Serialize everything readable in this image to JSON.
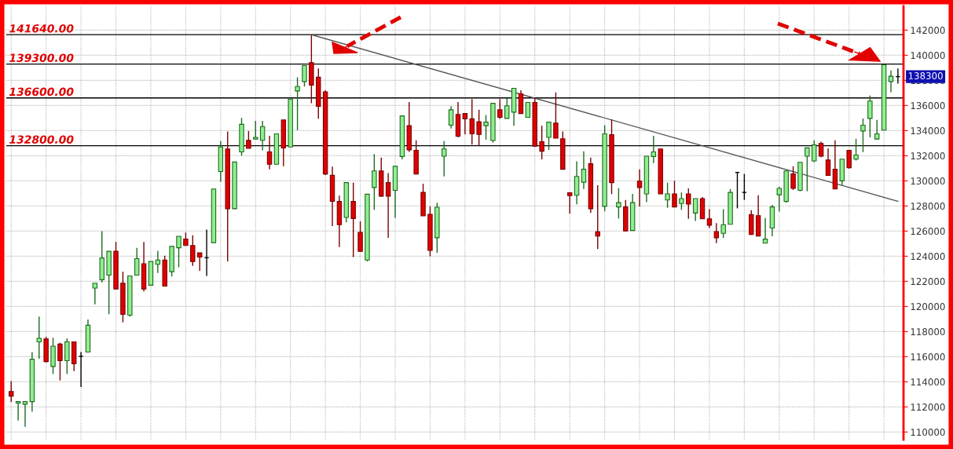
{
  "chart_data": {
    "type": "candlestick",
    "categories": [
      null,
      null,
      null,
      null,
      null,
      null,
      null,
      null,
      null,
      null,
      null,
      null,
      null,
      null,
      null,
      null,
      null,
      null,
      null,
      null,
      null,
      null,
      null,
      null,
      null,
      null,
      null,
      null,
      null,
      null,
      null,
      null,
      null,
      null,
      null,
      null,
      null,
      null,
      null,
      null,
      null,
      null,
      null,
      null,
      null,
      null,
      null,
      null,
      null,
      null,
      null,
      null,
      null,
      null,
      null,
      null,
      null,
      null,
      null,
      null,
      null,
      null,
      null,
      null,
      null,
      null,
      null,
      null,
      null,
      null,
      null,
      null,
      null,
      null,
      null,
      null,
      null,
      null,
      null,
      null,
      null,
      null,
      null,
      null,
      null,
      null,
      null,
      null,
      null,
      null,
      null,
      null,
      null,
      null,
      null,
      null,
      null,
      null,
      null,
      null,
      null,
      null,
      null,
      null,
      null,
      null,
      null,
      null,
      null,
      null,
      null,
      null,
      null,
      null,
      null,
      null,
      null,
      null,
      null,
      null,
      null,
      null,
      null,
      null,
      null,
      null,
      null,
      null
    ],
    "ohlc": [
      [
        113230,
        114060,
        112380,
        112860
      ],
      [
        112310,
        112420,
        110920,
        112420
      ],
      [
        112220,
        112420,
        110420,
        112420
      ],
      [
        112420,
        116370,
        111620,
        115800
      ],
      [
        117180,
        119190,
        115840,
        117460
      ],
      [
        117410,
        117580,
        115540,
        115610
      ],
      [
        115220,
        117510,
        114620,
        116840
      ],
      [
        117000,
        117110,
        114110,
        115680
      ],
      [
        115680,
        117460,
        114620,
        117180
      ],
      [
        117180,
        117180,
        114850,
        115430
      ],
      [
        116030,
        116370,
        113580,
        116030
      ],
      [
        116370,
        118960,
        116370,
        118500
      ],
      [
        121460,
        121850,
        120160,
        121850
      ],
      [
        122130,
        126000,
        121920,
        123860
      ],
      [
        122490,
        124390,
        119380,
        124390
      ],
      [
        124390,
        125150,
        121390,
        121390
      ],
      [
        121850,
        122770,
        118730,
        119380
      ],
      [
        119310,
        122430,
        119190,
        122430
      ],
      [
        122490,
        124670,
        122490,
        123810
      ],
      [
        123400,
        125130,
        121200,
        121390
      ],
      [
        121690,
        123580,
        121690,
        123580
      ],
      [
        123350,
        124430,
        122660,
        123700
      ],
      [
        123700,
        124040,
        121620,
        121620
      ],
      [
        122770,
        124780,
        122380,
        124780
      ],
      [
        124670,
        125590,
        123120,
        125590
      ],
      [
        125360,
        125890,
        124850,
        124850
      ],
      [
        124850,
        125660,
        123230,
        123580
      ],
      [
        124270,
        124270,
        122840,
        123930
      ],
      [
        123880,
        126120,
        122430,
        123880
      ],
      [
        125080,
        129350,
        125080,
        129350
      ],
      [
        130740,
        133160,
        129930,
        132700
      ],
      [
        132540,
        133930,
        123580,
        127780
      ],
      [
        127780,
        131500,
        127740,
        131500
      ],
      [
        132310,
        135010,
        132010,
        134500
      ],
      [
        133230,
        133970,
        132590,
        132590
      ],
      [
        133330,
        134780,
        133330,
        133460
      ],
      [
        133230,
        134780,
        132430,
        134320
      ],
      [
        132310,
        133580,
        130920,
        131320
      ],
      [
        131320,
        133740,
        131320,
        133740
      ],
      [
        134850,
        134850,
        131160,
        132630
      ],
      [
        132700,
        136510,
        132700,
        136510
      ],
      [
        137160,
        138250,
        134040,
        137510
      ],
      [
        137910,
        139180,
        137510,
        139180
      ],
      [
        139410,
        141610,
        136180,
        137630
      ],
      [
        138250,
        138940,
        134940,
        135940
      ],
      [
        137090,
        137210,
        130460,
        130550
      ],
      [
        130440,
        131130,
        126400,
        128380
      ],
      [
        128360,
        128820,
        124730,
        126510
      ],
      [
        127090,
        129860,
        126700,
        129860
      ],
      [
        128360,
        129860,
        123930,
        127000
      ],
      [
        125890,
        126770,
        124390,
        124390
      ],
      [
        123700,
        128940,
        123580,
        128940
      ],
      [
        129470,
        132130,
        127690,
        130790
      ],
      [
        130790,
        131850,
        128730,
        128780
      ],
      [
        129860,
        130620,
        125470,
        128780
      ],
      [
        129240,
        131160,
        127040,
        131160
      ],
      [
        131940,
        135170,
        131710,
        135170
      ],
      [
        134390,
        136280,
        132310,
        132470
      ],
      [
        132430,
        133230,
        130550,
        130550
      ],
      [
        129080,
        129770,
        127210,
        127210
      ],
      [
        127340,
        127970,
        124000,
        124460
      ],
      [
        125470,
        128250,
        124270,
        127900
      ],
      [
        131960,
        133160,
        130350,
        132540
      ],
      [
        134430,
        135940,
        134160,
        135660
      ],
      [
        135290,
        136280,
        133460,
        133560
      ],
      [
        135360,
        135400,
        133700,
        134940
      ],
      [
        134940,
        136510,
        132890,
        133740
      ],
      [
        134710,
        135660,
        132820,
        133700
      ],
      [
        134390,
        135240,
        133280,
        134670
      ],
      [
        133210,
        136170,
        133050,
        136170
      ],
      [
        135660,
        136510,
        134940,
        135060
      ],
      [
        134970,
        136580,
        134970,
        135980
      ],
      [
        135470,
        137370,
        134390,
        137370
      ],
      [
        136930,
        137210,
        135360,
        135360
      ],
      [
        135060,
        136240,
        135060,
        136240
      ],
      [
        136240,
        136630,
        132700,
        132770
      ],
      [
        133120,
        134390,
        131710,
        132360
      ],
      [
        133460,
        134670,
        132470,
        134670
      ],
      [
        134600,
        137040,
        133400,
        133400
      ],
      [
        133350,
        133930,
        130920,
        130920
      ],
      [
        129050,
        129050,
        127390,
        128820
      ],
      [
        128850,
        131550,
        128130,
        130350
      ],
      [
        129890,
        132360,
        129350,
        130920
      ],
      [
        131360,
        131850,
        127440,
        127780
      ],
      [
        125940,
        129650,
        124570,
        125610
      ],
      [
        127970,
        134430,
        127580,
        133740
      ],
      [
        133670,
        134900,
        128940,
        129860
      ],
      [
        127920,
        129420,
        127000,
        128270
      ],
      [
        127920,
        128480,
        125960,
        126010
      ],
      [
        126050,
        128960,
        126050,
        128270
      ],
      [
        129980,
        130920,
        127970,
        129470
      ],
      [
        128960,
        131960,
        128310,
        131960
      ],
      [
        131940,
        133580,
        131410,
        132310
      ],
      [
        132540,
        132540,
        128960,
        128960
      ],
      [
        128480,
        129860,
        127850,
        128960
      ],
      [
        128960,
        130000,
        127920,
        127920
      ],
      [
        128200,
        129080,
        127690,
        128590
      ],
      [
        128960,
        129400,
        126980,
        128150
      ],
      [
        127440,
        128590,
        126810,
        128590
      ],
      [
        128590,
        128710,
        126980,
        126980
      ],
      [
        126980,
        127740,
        126240,
        126470
      ],
      [
        125960,
        126630,
        125040,
        125470
      ],
      [
        125820,
        127740,
        125470,
        126510
      ],
      [
        126540,
        129350,
        126540,
        129080
      ],
      [
        130670,
        130670,
        127810,
        130670
      ],
      [
        129080,
        130550,
        128480,
        129080
      ],
      [
        127320,
        127670,
        125700,
        125730
      ],
      [
        127230,
        128850,
        125610,
        125610
      ],
      [
        125040,
        127040,
        125040,
        125360
      ],
      [
        126240,
        128080,
        125590,
        127920
      ],
      [
        128890,
        129520,
        127550,
        129400
      ],
      [
        128360,
        130790,
        128270,
        130790
      ],
      [
        130550,
        131160,
        129280,
        129400
      ],
      [
        129240,
        131480,
        129170,
        131480
      ],
      [
        131960,
        132630,
        129170,
        132630
      ],
      [
        131590,
        133230,
        131500,
        132860
      ],
      [
        132980,
        133120,
        131890,
        131960
      ],
      [
        131660,
        132590,
        130440,
        130440
      ],
      [
        130920,
        133230,
        129350,
        129350
      ],
      [
        130000,
        131730,
        129630,
        131730
      ],
      [
        132430,
        132470,
        130970,
        131040
      ],
      [
        131730,
        133350,
        131620,
        132060
      ],
      [
        133970,
        134970,
        132290,
        134430
      ],
      [
        134970,
        136790,
        133460,
        136350
      ],
      [
        133330,
        134850,
        133280,
        133740
      ],
      [
        134040,
        139240,
        134040,
        139240
      ],
      [
        137910,
        138790,
        137060,
        138330
      ],
      [
        138300,
        138940,
        137740,
        138300
      ]
    ],
    "colors": [
      "#e00000",
      "#90ee90",
      "#90ee90",
      "#90ee90",
      "#90ee90",
      "#e00000",
      "#90ee90",
      "#e00000",
      "#90ee90",
      "#e00000",
      "#000000",
      "#90ee90",
      "#90ee90",
      "#90ee90",
      "#90ee90",
      "#e00000",
      "#e00000",
      "#90ee90",
      "#90ee90",
      "#e00000",
      "#90ee90",
      "#90ee90",
      "#e00000",
      "#90ee90",
      "#90ee90",
      "#e00000",
      "#e00000",
      "#e00000",
      "#000000",
      "#90ee90",
      "#90ee90",
      "#e00000",
      "#90ee90",
      "#90ee90",
      "#e00000",
      "#90ee90",
      "#90ee90",
      "#e00000",
      "#90ee90",
      "#e00000",
      "#90ee90",
      "#90ee90",
      "#90ee90",
      "#e00000",
      "#e00000",
      "#e00000",
      "#e00000",
      "#e00000",
      "#90ee90",
      "#e00000",
      "#e00000",
      "#90ee90",
      "#90ee90",
      "#e00000",
      "#e00000",
      "#90ee90",
      "#90ee90",
      "#e00000",
      "#e00000",
      "#e00000",
      "#e00000",
      "#90ee90",
      "#90ee90",
      "#90ee90",
      "#e00000",
      "#e00000",
      "#e00000",
      "#e00000",
      "#90ee90",
      "#90ee90",
      "#e00000",
      "#90ee90",
      "#90ee90",
      "#e00000",
      "#90ee90",
      "#e00000",
      "#e00000",
      "#90ee90",
      "#e00000",
      "#e00000",
      "#e00000",
      "#90ee90",
      "#90ee90",
      "#e00000",
      "#e00000",
      "#90ee90",
      "#e00000",
      "#90ee90",
      "#e00000",
      "#90ee90",
      "#e00000",
      "#90ee90",
      "#90ee90",
      "#e00000",
      "#90ee90",
      "#e00000",
      "#90ee90",
      "#e00000",
      "#90ee90",
      "#e00000",
      "#e00000",
      "#e00000",
      "#90ee90",
      "#90ee90",
      "#000000",
      "#000000",
      "#e00000",
      "#e00000",
      "#90ee90",
      "#90ee90",
      "#90ee90",
      "#90ee90",
      "#e00000",
      "#90ee90",
      "#90ee90",
      "#90ee90",
      "#e00000",
      "#e00000",
      "#e00000",
      "#90ee90",
      "#e00000",
      "#90ee90",
      "#90ee90",
      "#90ee90",
      "#90ee90",
      "#90ee90",
      "#90ee90",
      "#000000"
    ],
    "series": [
      {
        "type": "line",
        "color": "#555555",
        "values": [
          null,
          null,
          null,
          null,
          null,
          null,
          null,
          null,
          null,
          null,
          null,
          null,
          null,
          null,
          null,
          null,
          null,
          null,
          null,
          null,
          null,
          null,
          null,
          null,
          null,
          null,
          null,
          null,
          null,
          null,
          null,
          null,
          null,
          null,
          null,
          null,
          null,
          null,
          null,
          null,
          null,
          null,
          null,
          141640,
          null,
          null,
          null,
          null,
          null,
          null,
          null,
          null,
          null,
          null,
          null,
          null,
          null,
          null,
          null,
          null,
          null,
          null,
          null,
          null,
          null,
          null,
          null,
          null,
          null,
          null,
          null,
          null,
          null,
          null,
          null,
          null,
          null,
          null,
          null,
          null,
          null,
          null,
          null,
          null,
          null,
          null,
          null,
          null,
          null,
          null,
          null,
          null,
          null,
          null,
          null,
          null,
          null,
          null,
          null,
          null,
          null,
          null,
          null,
          null,
          null,
          null,
          null,
          null,
          null,
          null,
          null,
          null,
          null,
          null,
          null,
          null,
          null,
          null,
          null,
          null,
          null,
          null,
          null,
          null,
          null,
          null,
          null,
          128370
        ]
      }
    ],
    "ref_lines": [
      {
        "axis": "y",
        "value": 141640,
        "label": "141640.00",
        "color": "#000000"
      },
      {
        "axis": "y",
        "value": 139300,
        "label": "139300.00",
        "color": "#000000"
      },
      {
        "axis": "y",
        "value": 136600,
        "label": "136600.00",
        "color": "#000000"
      },
      {
        "axis": "y",
        "value": 132800,
        "label": "132800.00",
        "color": "#000000"
      }
    ],
    "annotations": [
      "138300"
    ],
    "ylim": [
      109400,
      143900
    ],
    "yticks": [
      110000,
      112000,
      114000,
      116000,
      118000,
      120000,
      122000,
      124000,
      126000,
      128000,
      130000,
      132000,
      134000,
      136000,
      138000,
      140000,
      142000
    ],
    "grid": true
  }
}
